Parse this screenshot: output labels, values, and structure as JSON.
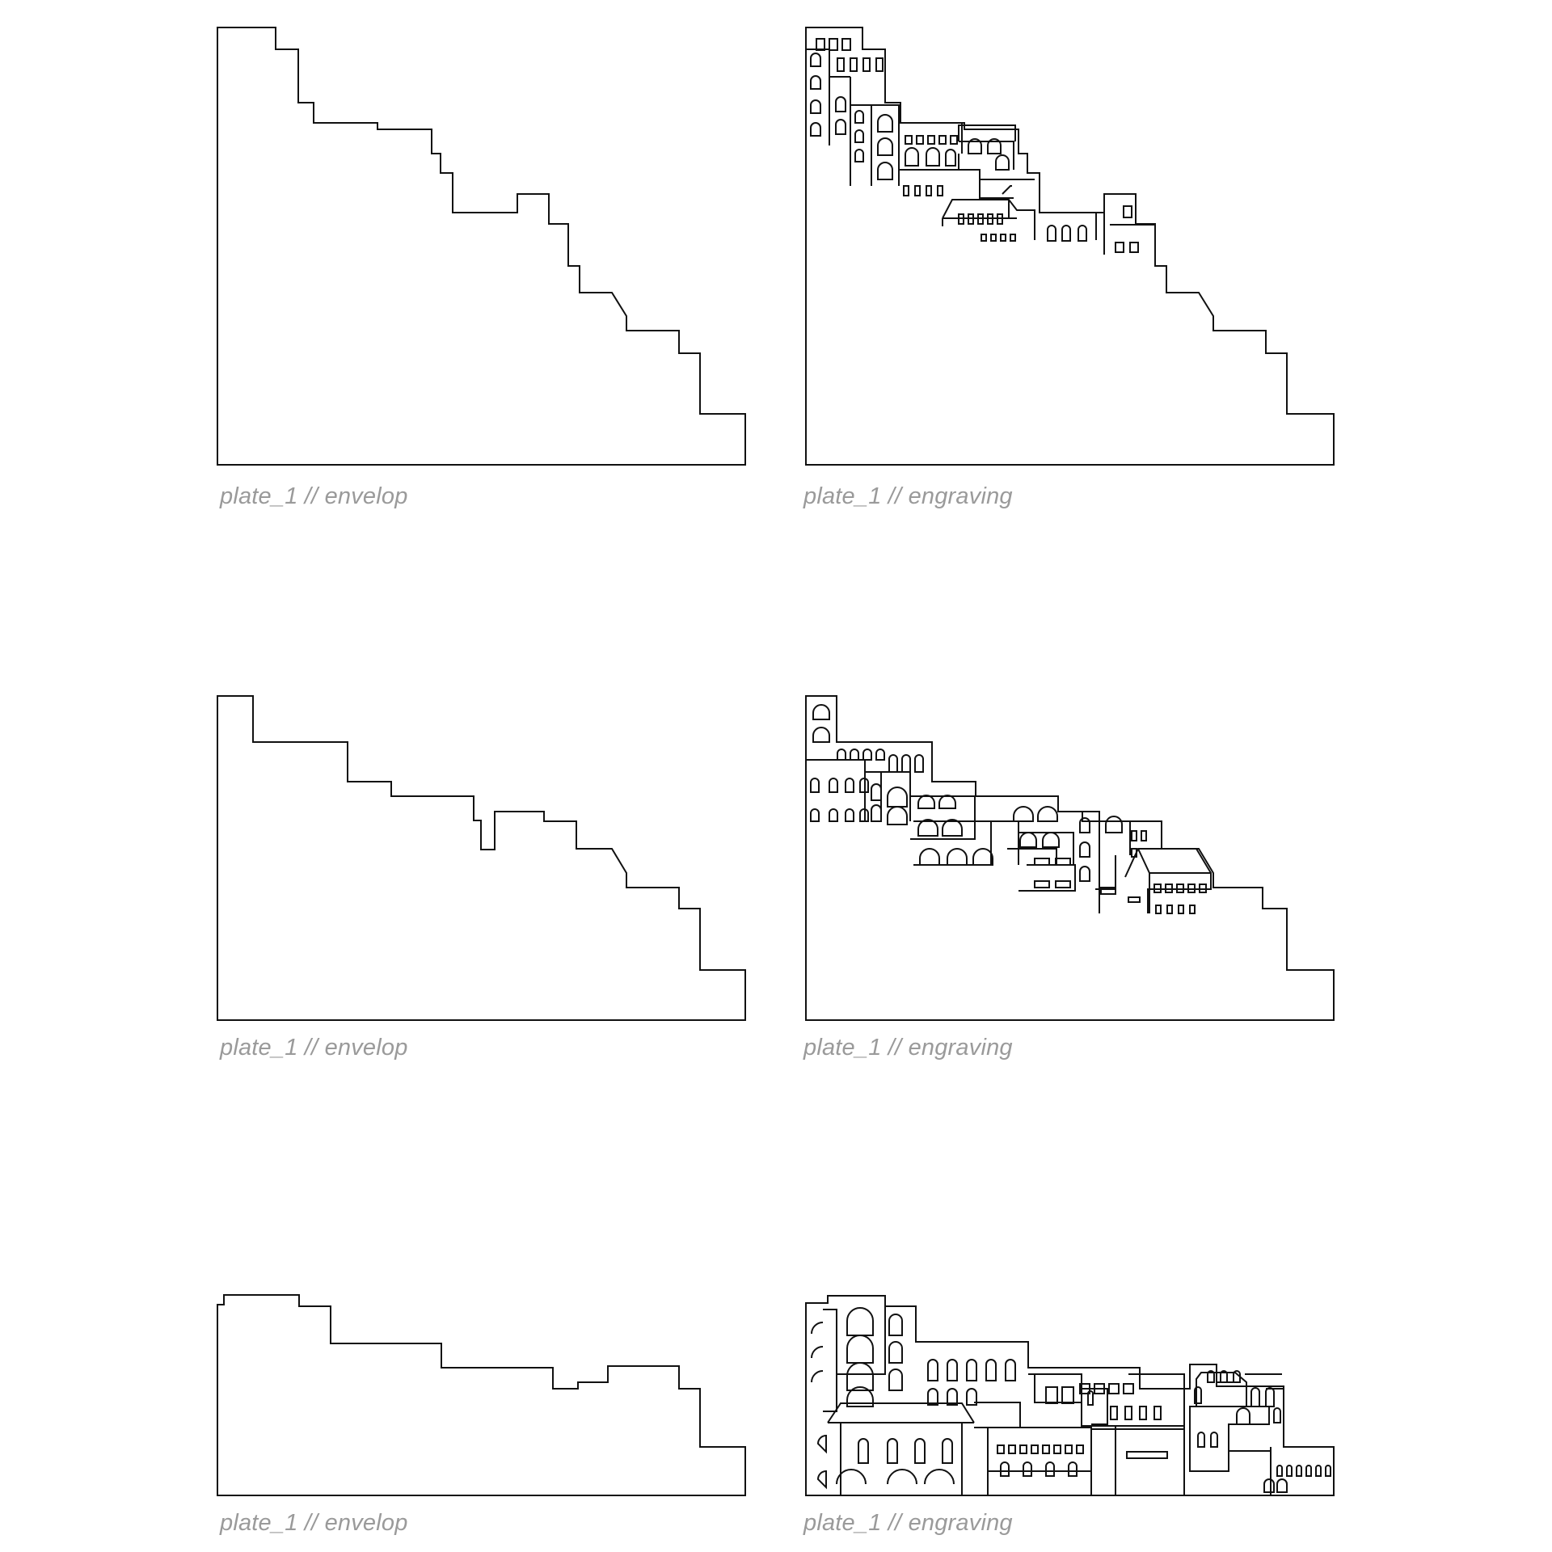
{
  "plates": [
    {
      "caption": "plate_1 // envelop"
    },
    {
      "caption": "plate_1 // engraving"
    },
    {
      "caption": "plate_1 // envelop"
    },
    {
      "caption": "plate_1 // engraving"
    },
    {
      "caption": "plate_1 // envelop"
    },
    {
      "caption": "plate_1 // engraving"
    }
  ],
  "colors": {
    "line": "#111111",
    "caption": "#9a9a9a",
    "background": "#ffffff"
  }
}
